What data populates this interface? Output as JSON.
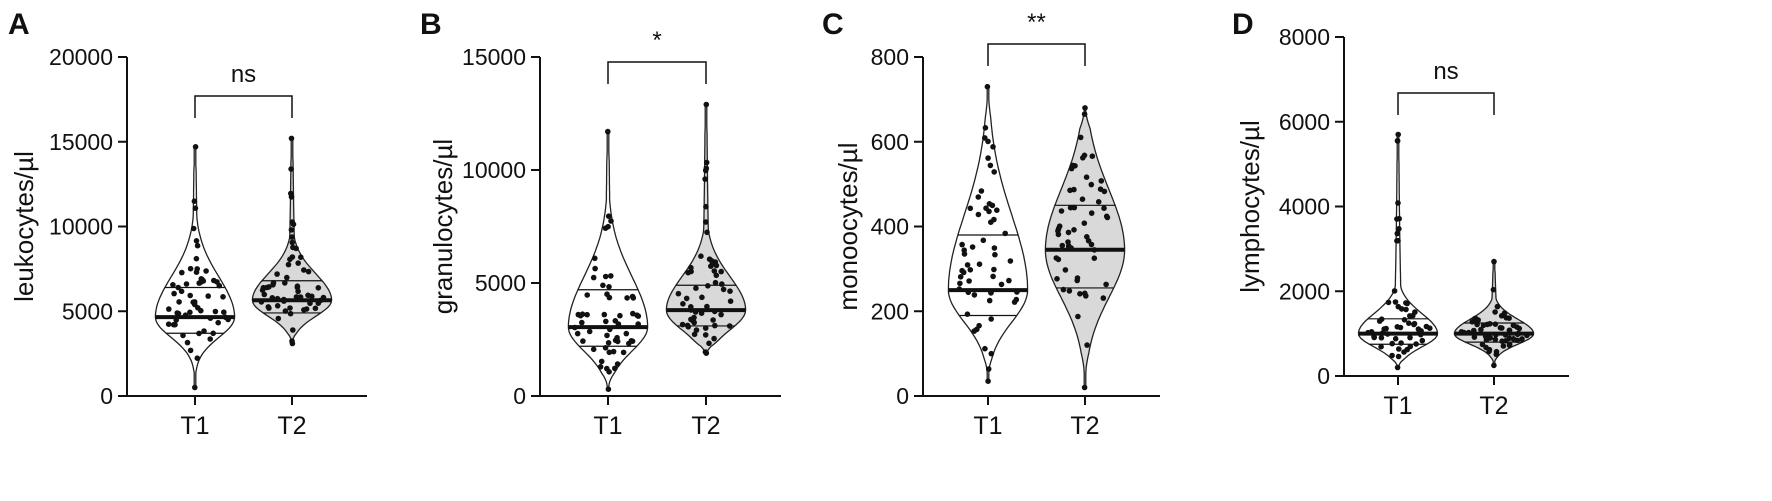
{
  "chart_data": [
    {
      "type": "violin",
      "panel_label": "A",
      "ylabel": "leukocytes/µl",
      "categories": [
        "T1",
        "T2"
      ],
      "ylim": [
        0,
        20000
      ],
      "yticks": [
        "0",
        "5000",
        "10000",
        "15000",
        "20000"
      ],
      "significance": "ns",
      "series": [
        {
          "category": "T1",
          "fill": "#ffffff",
          "min": 500,
          "max": 14700,
          "median": 4650,
          "q1": 3700,
          "q3": 6400
        },
        {
          "category": "T2",
          "fill": "#d9d9d9",
          "min": 3100,
          "max": 15200,
          "median": 5650,
          "q1": 4900,
          "q3": 6800
        }
      ]
    },
    {
      "type": "violin",
      "panel_label": "B",
      "ylabel": "granulocytes/µl",
      "categories": [
        "T1",
        "T2"
      ],
      "ylim": [
        0,
        15000
      ],
      "yticks": [
        "0",
        "5000",
        "10000",
        "15000"
      ],
      "significance": "*",
      "series": [
        {
          "category": "T1",
          "fill": "#ffffff",
          "min": 300,
          "max": 11700,
          "median": 3050,
          "q1": 2200,
          "q3": 4700
        },
        {
          "category": "T2",
          "fill": "#d9d9d9",
          "min": 1900,
          "max": 12900,
          "median": 3800,
          "q1": 3100,
          "q3": 4900
        }
      ]
    },
    {
      "type": "violin",
      "panel_label": "C",
      "ylabel": "monoocytes/µl",
      "categories": [
        "T1",
        "T2"
      ],
      "ylim": [
        0,
        800
      ],
      "yticks": [
        "0",
        "200",
        "400",
        "600",
        "800"
      ],
      "significance": "**",
      "series": [
        {
          "category": "T1",
          "fill": "#ffffff",
          "min": 35,
          "max": 730,
          "median": 250,
          "q1": 190,
          "q3": 380
        },
        {
          "category": "T2",
          "fill": "#d9d9d9",
          "min": 20,
          "max": 680,
          "median": 345,
          "q1": 255,
          "q3": 450
        }
      ]
    },
    {
      "type": "violin",
      "panel_label": "D",
      "ylabel": "lymphocytes/µl",
      "categories": [
        "T1",
        "T2"
      ],
      "ylim": [
        0,
        8000
      ],
      "yticks": [
        "0",
        "2000",
        "4000",
        "6000",
        "8000"
      ],
      "significance": "ns",
      "series": [
        {
          "category": "T1",
          "fill": "#ffffff",
          "min": 200,
          "max": 5700,
          "median": 1000,
          "q1": 750,
          "q3": 1350
        },
        {
          "category": "T2",
          "fill": "#d9d9d9",
          "min": 250,
          "max": 2700,
          "median": 1000,
          "q1": 800,
          "q3": 1250
        }
      ]
    }
  ]
}
